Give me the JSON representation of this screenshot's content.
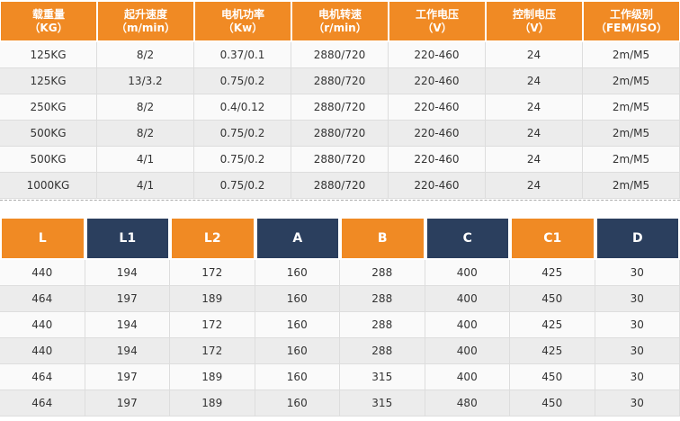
{
  "table1": {
    "headers": [
      {
        "title": "载重量",
        "unit": "（KG）"
      },
      {
        "title": "起升速度",
        "unit": "（m/min）"
      },
      {
        "title": "电机功率",
        "unit": "（Kw）"
      },
      {
        "title": "电机转速",
        "unit": "（r/min）"
      },
      {
        "title": "工作电压",
        "unit": "（V）"
      },
      {
        "title": "控制电压",
        "unit": "（V）"
      },
      {
        "title": "工作级别",
        "unit": "（FEM/ISO）"
      }
    ],
    "rows": [
      [
        "125KG",
        "8/2",
        "0.37/0.1",
        "2880/720",
        "220-460",
        "24",
        "2m/M5"
      ],
      [
        "125KG",
        "13/3.2",
        "0.75/0.2",
        "2880/720",
        "220-460",
        "24",
        "2m/M5"
      ],
      [
        "250KG",
        "8/2",
        "0.4/0.12",
        "2880/720",
        "220-460",
        "24",
        "2m/M5"
      ],
      [
        "500KG",
        "8/2",
        "0.75/0.2",
        "2880/720",
        "220-460",
        "24",
        "2m/M5"
      ],
      [
        "500KG",
        "4/1",
        "0.75/0.2",
        "2880/720",
        "220-460",
        "24",
        "2m/M5"
      ],
      [
        "1000KG",
        "4/1",
        "0.75/0.2",
        "2880/720",
        "220-460",
        "24",
        "2m/M5"
      ]
    ]
  },
  "table2": {
    "headers": [
      "L",
      "L1",
      "L2",
      "A",
      "B",
      "C",
      "C1",
      "D"
    ],
    "rows": [
      [
        "440",
        "194",
        "172",
        "160",
        "288",
        "400",
        "425",
        "30"
      ],
      [
        "464",
        "197",
        "189",
        "160",
        "288",
        "400",
        "450",
        "30"
      ],
      [
        "440",
        "194",
        "172",
        "160",
        "288",
        "400",
        "425",
        "30"
      ],
      [
        "440",
        "194",
        "172",
        "160",
        "288",
        "400",
        "425",
        "30"
      ],
      [
        "464",
        "197",
        "189",
        "160",
        "315",
        "400",
        "450",
        "30"
      ],
      [
        "464",
        "197",
        "189",
        "160",
        "315",
        "480",
        "450",
        "30"
      ]
    ]
  }
}
